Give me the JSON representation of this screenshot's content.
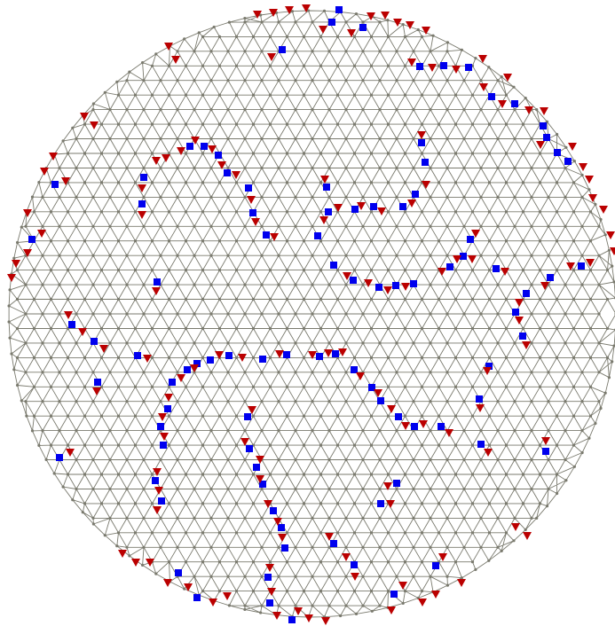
{
  "figure": {
    "kind": "triangulated-disk-lattice-with-defects",
    "colors": {
      "background": "#ffffff",
      "edge": "#7a7a6e",
      "node": "#7a7a6e",
      "square-defect": "#0000ee",
      "triangle-defect": "#bb0000"
    },
    "legend": []
  }
}
